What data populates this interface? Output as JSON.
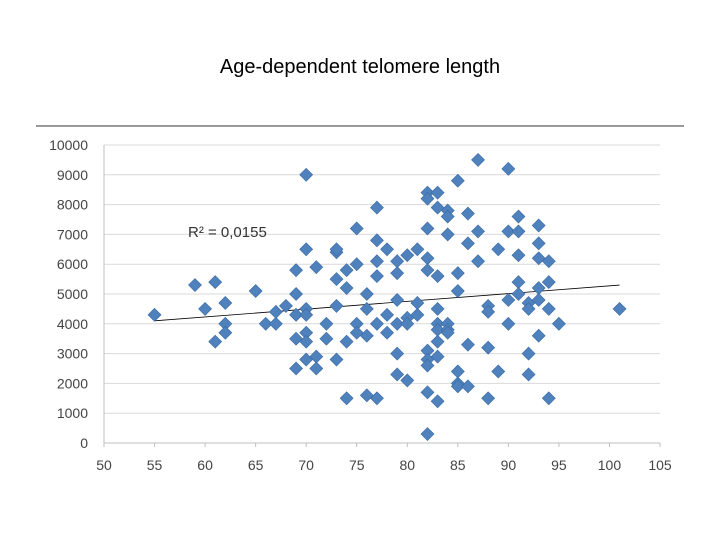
{
  "slide": {
    "title": "Age-dependent telomere length"
  },
  "colors": {
    "marker": "#4f81bd",
    "marker_stroke": "#3a6aa3",
    "grid": "#d9d9d9",
    "trend": "#000000"
  },
  "chart_data": {
    "type": "scatter",
    "title": "",
    "xlabel": "",
    "ylabel": "",
    "xlim": [
      50,
      105
    ],
    "ylim": [
      0,
      10000
    ],
    "xticks": [
      50,
      55,
      60,
      65,
      70,
      75,
      80,
      85,
      90,
      95,
      100,
      105
    ],
    "yticks": [
      0,
      1000,
      2000,
      3000,
      4000,
      5000,
      6000,
      7000,
      8000,
      9000,
      10000
    ],
    "grid": "horizontal",
    "legend": "none",
    "annotation": "R² = 0,0155",
    "trendline": {
      "type": "linear",
      "x": [
        55,
        101
      ],
      "y": [
        4100,
        5300
      ]
    },
    "points": [
      [
        55,
        4300
      ],
      [
        59,
        5300
      ],
      [
        60,
        4500
      ],
      [
        61,
        5400
      ],
      [
        61,
        3400
      ],
      [
        62,
        4700
      ],
      [
        62,
        4000
      ],
      [
        62,
        3700
      ],
      [
        65,
        5100
      ],
      [
        66,
        4000
      ],
      [
        67,
        4000
      ],
      [
        67,
        4400
      ],
      [
        68,
        4600
      ],
      [
        69,
        5800
      ],
      [
        69,
        5000
      ],
      [
        69,
        4300
      ],
      [
        69,
        3500
      ],
      [
        69,
        2500
      ],
      [
        70,
        9000
      ],
      [
        70,
        6500
      ],
      [
        70,
        4500
      ],
      [
        70,
        4300
      ],
      [
        70,
        3700
      ],
      [
        70,
        3400
      ],
      [
        70,
        2800
      ],
      [
        71,
        5900
      ],
      [
        71,
        2900
      ],
      [
        71,
        2500
      ],
      [
        72,
        4000
      ],
      [
        72,
        3500
      ],
      [
        73,
        6400
      ],
      [
        73,
        6500
      ],
      [
        73,
        5500
      ],
      [
        73,
        4600
      ],
      [
        73,
        2800
      ],
      [
        74,
        5800
      ],
      [
        74,
        5200
      ],
      [
        74,
        3400
      ],
      [
        74,
        1500
      ],
      [
        75,
        7200
      ],
      [
        75,
        6000
      ],
      [
        75,
        4000
      ],
      [
        75,
        3700
      ],
      [
        76,
        5000
      ],
      [
        76,
        4500
      ],
      [
        76,
        3600
      ],
      [
        76,
        1600
      ],
      [
        77,
        7900
      ],
      [
        77,
        6800
      ],
      [
        77,
        6100
      ],
      [
        77,
        5600
      ],
      [
        77,
        4000
      ],
      [
        77,
        1500
      ],
      [
        78,
        6500
      ],
      [
        78,
        4300
      ],
      [
        78,
        3700
      ],
      [
        79,
        6100
      ],
      [
        79,
        5700
      ],
      [
        79,
        4800
      ],
      [
        79,
        4000
      ],
      [
        79,
        3000
      ],
      [
        79,
        2300
      ],
      [
        80,
        6300
      ],
      [
        80,
        4200
      ],
      [
        80,
        4000
      ],
      [
        80,
        2100
      ],
      [
        81,
        6500
      ],
      [
        81,
        4700
      ],
      [
        81,
        4300
      ],
      [
        82,
        8400
      ],
      [
        82,
        8200
      ],
      [
        82,
        7200
      ],
      [
        82,
        6200
      ],
      [
        82,
        5800
      ],
      [
        82,
        3100
      ],
      [
        82,
        2800
      ],
      [
        82,
        2600
      ],
      [
        82,
        1700
      ],
      [
        82,
        300
      ],
      [
        83,
        8400
      ],
      [
        83,
        7900
      ],
      [
        83,
        5600
      ],
      [
        83,
        4500
      ],
      [
        83,
        4000
      ],
      [
        83,
        3800
      ],
      [
        83,
        3400
      ],
      [
        83,
        2900
      ],
      [
        83,
        1400
      ],
      [
        84,
        7800
      ],
      [
        84,
        7600
      ],
      [
        84,
        7000
      ],
      [
        84,
        4000
      ],
      [
        84,
        3800
      ],
      [
        84,
        3700
      ],
      [
        85,
        8800
      ],
      [
        85,
        5700
      ],
      [
        85,
        5100
      ],
      [
        85,
        2400
      ],
      [
        85,
        2000
      ],
      [
        85,
        1900
      ],
      [
        86,
        7700
      ],
      [
        86,
        6700
      ],
      [
        86,
        3300
      ],
      [
        86,
        1900
      ],
      [
        87,
        9500
      ],
      [
        87,
        7100
      ],
      [
        87,
        6100
      ],
      [
        88,
        4600
      ],
      [
        88,
        4400
      ],
      [
        88,
        3200
      ],
      [
        88,
        1500
      ],
      [
        89,
        6500
      ],
      [
        89,
        2400
      ],
      [
        90,
        9200
      ],
      [
        90,
        7100
      ],
      [
        90,
        4800
      ],
      [
        90,
        4000
      ],
      [
        91,
        7600
      ],
      [
        91,
        7100
      ],
      [
        91,
        6300
      ],
      [
        91,
        5400
      ],
      [
        91,
        5000
      ],
      [
        92,
        4700
      ],
      [
        92,
        4500
      ],
      [
        92,
        3000
      ],
      [
        92,
        2300
      ],
      [
        93,
        7300
      ],
      [
        93,
        6700
      ],
      [
        93,
        6200
      ],
      [
        93,
        5200
      ],
      [
        93,
        4800
      ],
      [
        93,
        3600
      ],
      [
        94,
        6100
      ],
      [
        94,
        5400
      ],
      [
        94,
        4500
      ],
      [
        94,
        1500
      ],
      [
        95,
        4000
      ],
      [
        101,
        4500
      ]
    ]
  }
}
